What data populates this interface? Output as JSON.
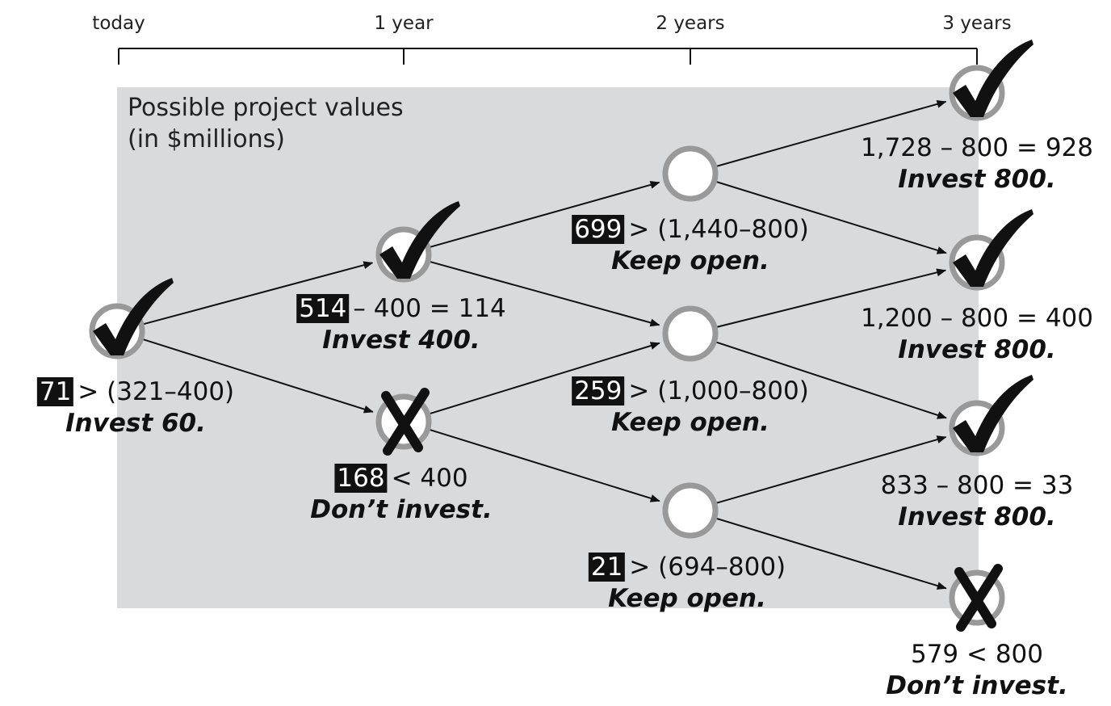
{
  "timeline": [
    "today",
    "1 year",
    "2 years",
    "3 years"
  ],
  "panel_title": [
    "Possible project values",
    "(in $millions)"
  ],
  "nodes": [
    {
      "badge": "71",
      "text": "> (321–400)",
      "action": "Invest 60."
    },
    {
      "badge": "514",
      "text": "– 400 = 114",
      "action": "Invest 400."
    },
    {
      "badge": "168",
      "text": "< 400",
      "action": "Don’t invest."
    },
    {
      "badge": "699",
      "text": "> (1,440–800)",
      "action": "Keep open."
    },
    {
      "badge": "259",
      "text": "> (1,000–800)",
      "action": "Keep open."
    },
    {
      "badge": "21",
      "text": "> (694–800)",
      "action": "Keep open."
    },
    {
      "text": "1,728 – 800 = 928",
      "action": "Invest 800."
    },
    {
      "text": "1,200 – 800 = 400",
      "action": "Invest 800."
    },
    {
      "text": "833 – 800 = 33",
      "action": "Invest 800."
    },
    {
      "text": "579 < 800",
      "action": "Don’t invest."
    }
  ]
}
